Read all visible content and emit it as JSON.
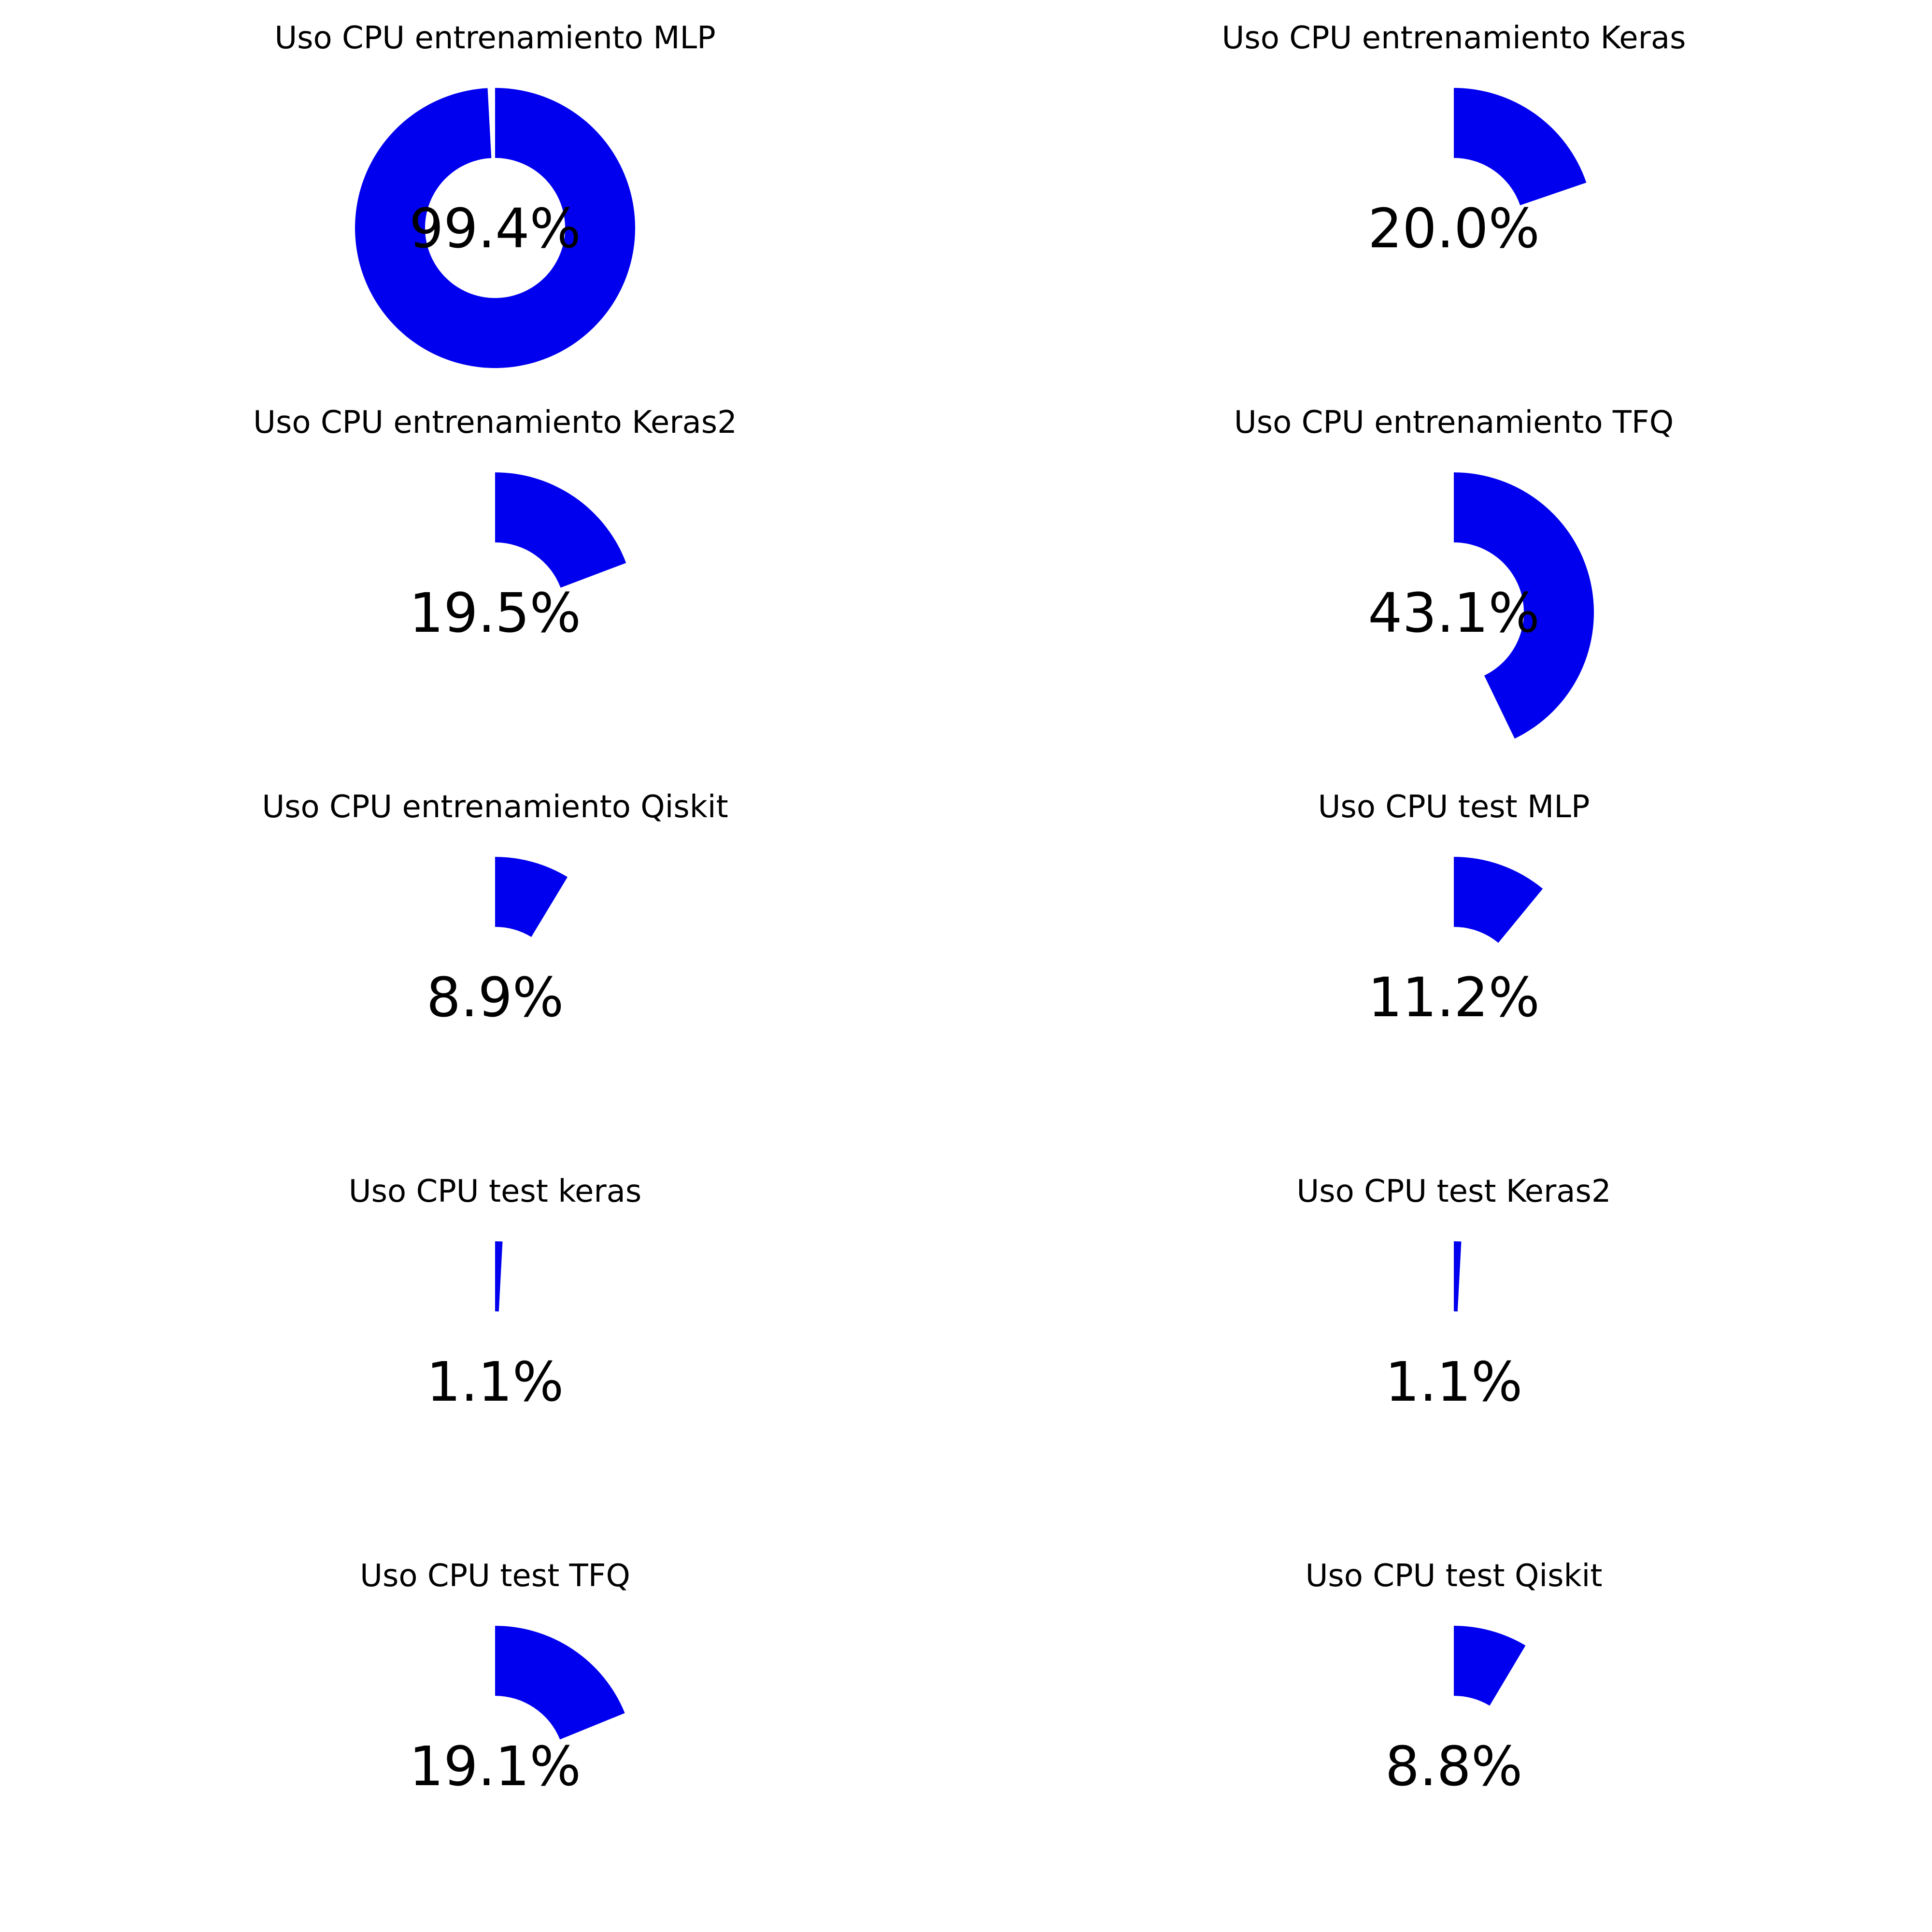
{
  "colors": {
    "fill": "#0000ee",
    "text": "#000000",
    "background": "#ffffff"
  },
  "chart_data": [
    {
      "type": "pie",
      "title": "Uso CPU entrenamiento MLP",
      "value": 99.4,
      "value_label": "99.4%"
    },
    {
      "type": "pie",
      "title": "Uso CPU entrenamiento Keras",
      "value": 20.0,
      "value_label": "20.0%"
    },
    {
      "type": "pie",
      "title": "Uso CPU entrenamiento Keras2",
      "value": 19.5,
      "value_label": "19.5%"
    },
    {
      "type": "pie",
      "title": "Uso CPU entrenamiento TFQ",
      "value": 43.1,
      "value_label": "43.1%"
    },
    {
      "type": "pie",
      "title": "Uso CPU entrenamiento Qiskit",
      "value": 8.9,
      "value_label": "8.9%"
    },
    {
      "type": "pie",
      "title": "Uso CPU test MLP",
      "value": 11.2,
      "value_label": "11.2%"
    },
    {
      "type": "pie",
      "title": "Uso CPU test keras",
      "value": 1.1,
      "value_label": "1.1%"
    },
    {
      "type": "pie",
      "title": "Uso CPU test Keras2",
      "value": 1.1,
      "value_label": "1.1%"
    },
    {
      "type": "pie",
      "title": "Uso CPU test TFQ",
      "value": 19.1,
      "value_label": "19.1%"
    },
    {
      "type": "pie",
      "title": "Uso CPU test Qiskit",
      "value": 8.8,
      "value_label": "8.8%"
    }
  ]
}
